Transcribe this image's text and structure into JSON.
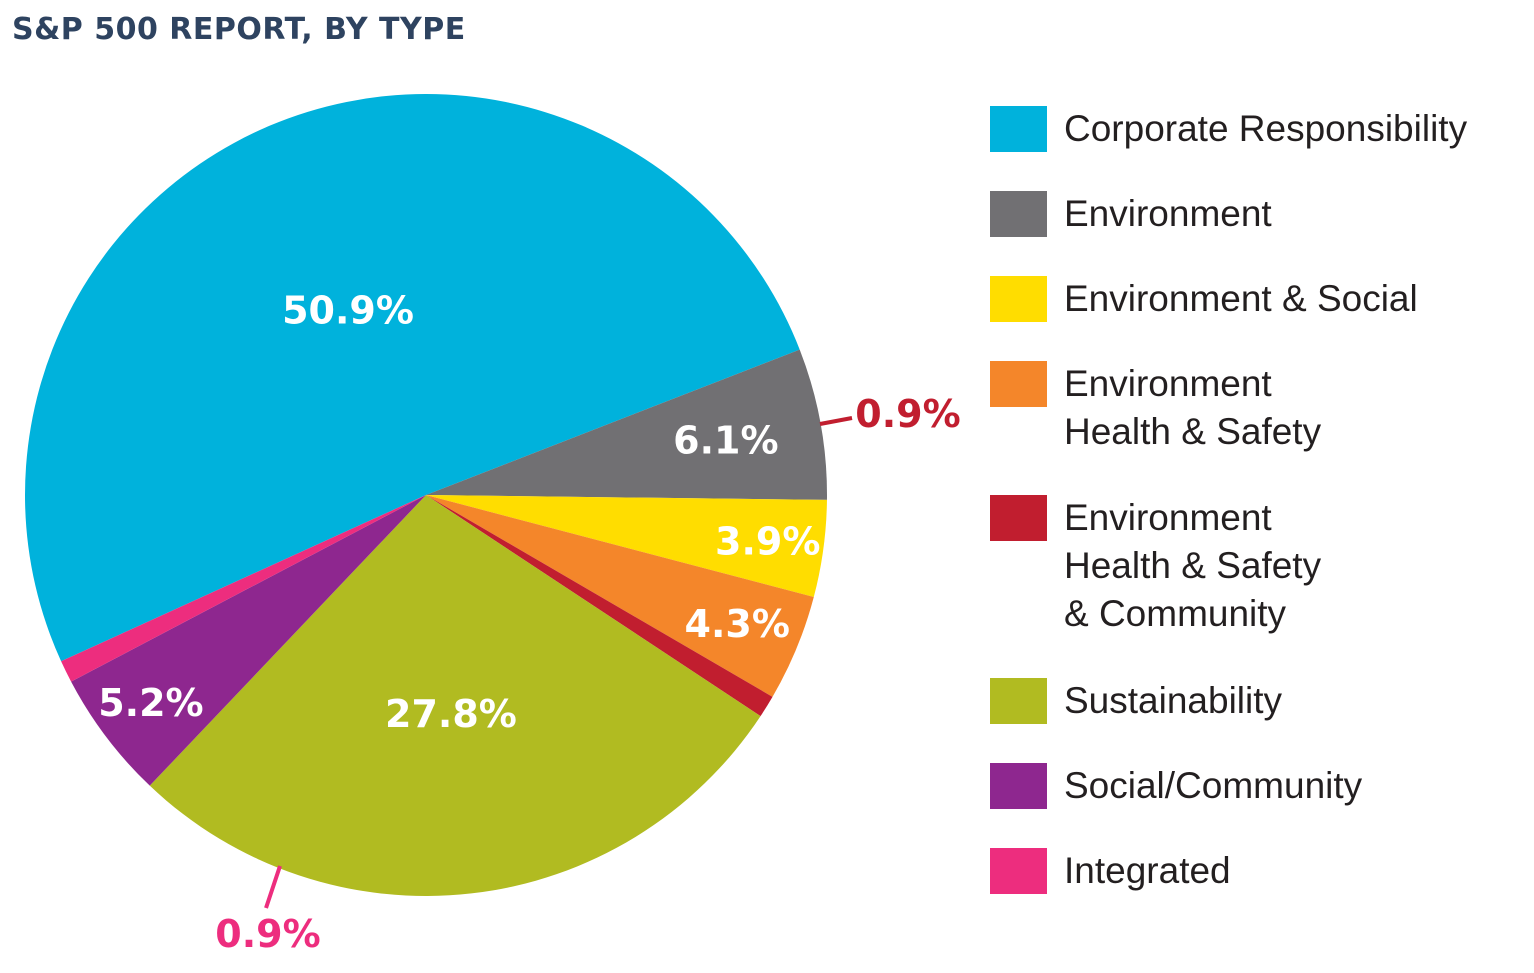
{
  "chart_data": {
    "type": "pie",
    "title": "S&P 500 REPORT, BY TYPE",
    "legend_position": "right",
    "slices": [
      {
        "label": "Corporate Responsibility",
        "value": 50.9,
        "value_label": "50.9%",
        "color": "#00b2dc"
      },
      {
        "label": "Environment",
        "value": 6.1,
        "value_label": "6.1%",
        "color": "#717073"
      },
      {
        "label": "Environment & Social",
        "value": 3.9,
        "value_label": "3.9%",
        "color": "#ffdd00"
      },
      {
        "label": "Environment\nHealth & Safety",
        "value": 4.3,
        "value_label": "4.3%",
        "color": "#f4862a"
      },
      {
        "label": "Environment\nHealth & Safety\n& Community",
        "value": 0.9,
        "value_label": "0.9%",
        "color": "#c11e2f"
      },
      {
        "label": "Sustainability",
        "value": 27.8,
        "value_label": "27.8%",
        "color": "#b1bb21"
      },
      {
        "label": "Social/Community",
        "value": 5.2,
        "value_label": "5.2%",
        "color": "#8e278f"
      },
      {
        "label": "Integrated",
        "value": 0.9,
        "value_label": "0.9%",
        "color": "#ed2d7e"
      }
    ]
  }
}
